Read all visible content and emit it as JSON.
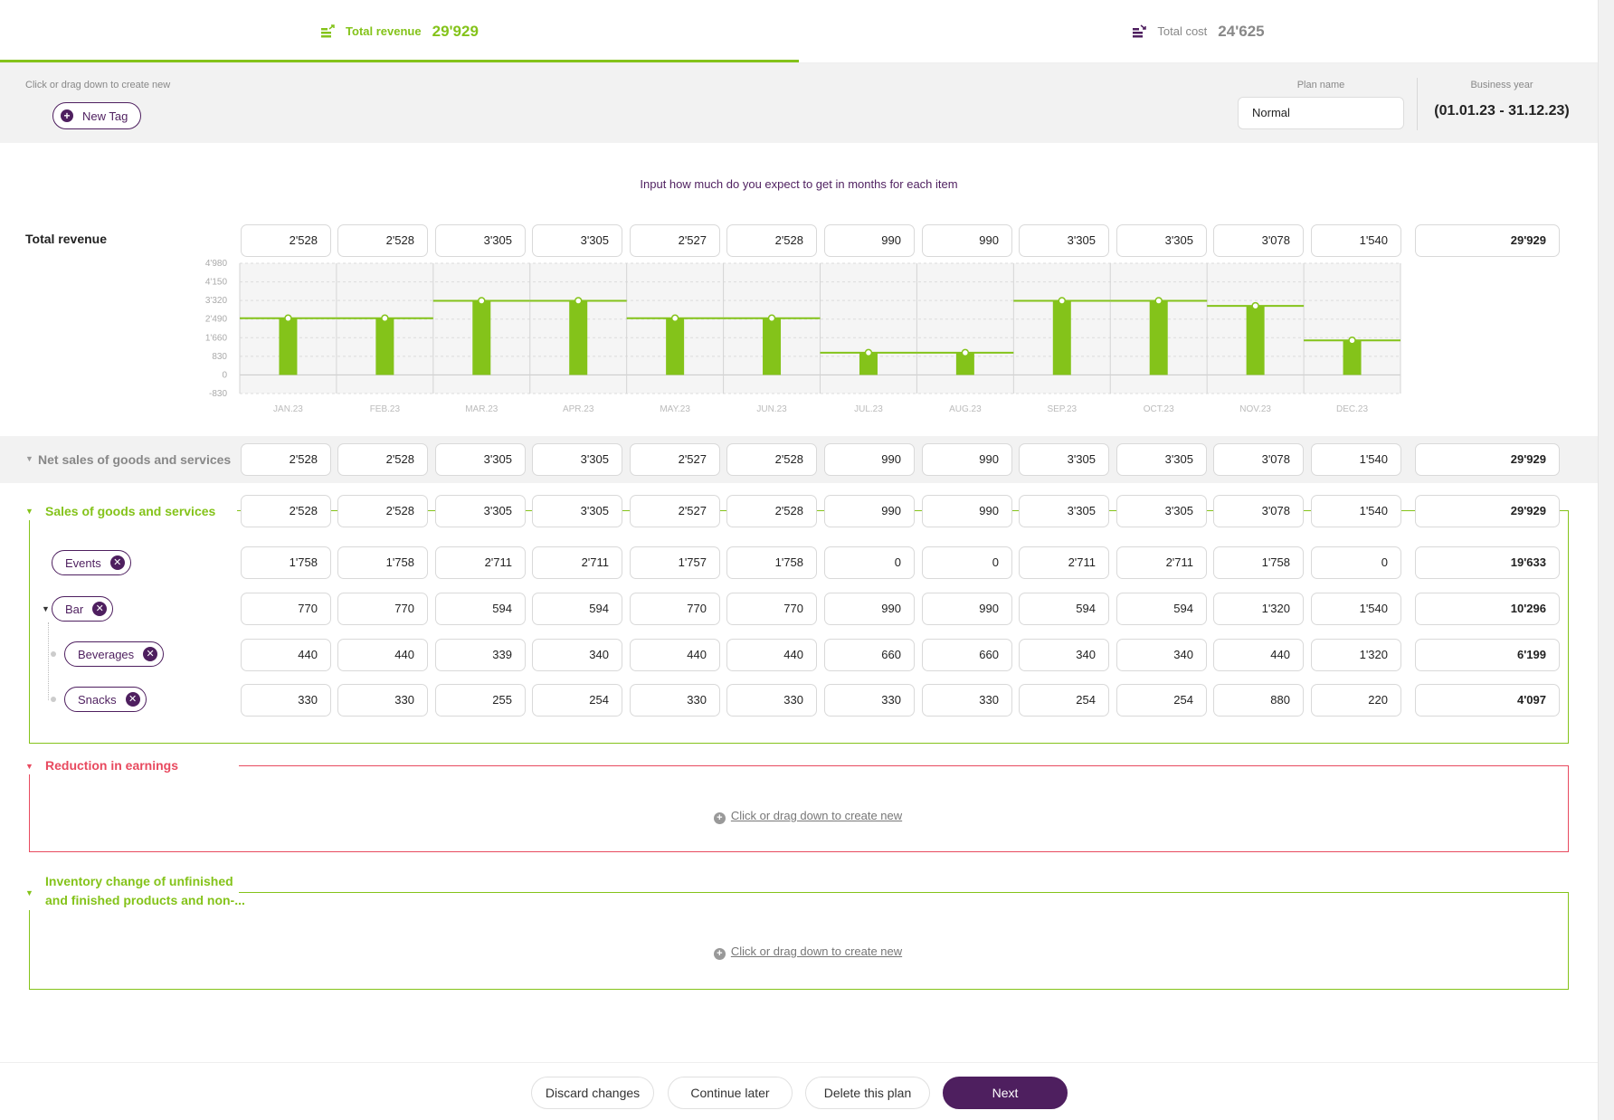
{
  "tabs": {
    "revenue": {
      "label": "Total revenue",
      "value": "29'929",
      "icon": "revenue-stack-icon"
    },
    "cost": {
      "label": "Total cost",
      "value": "24'625",
      "icon": "cost-stack-icon"
    }
  },
  "tagbar": {
    "hint": "Click or drag down to create new",
    "new_tag_label": "New Tag",
    "plan_name_label": "Plan name",
    "plan_name_value": "Normal",
    "business_year_label": "Business year",
    "business_year_value": "(01.01.23 - 31.12.23)"
  },
  "instruction": "Input how much do you expect to get in months for each item",
  "colors": {
    "accent_green": "#84c31a",
    "accent_red": "#e84a5f",
    "brand_purple": "#4e1f5f"
  },
  "rows": {
    "total_revenue": {
      "label": "Total revenue",
      "values": [
        "2'528",
        "2'528",
        "3'305",
        "3'305",
        "2'527",
        "2'528",
        "990",
        "990",
        "3'305",
        "3'305",
        "3'078",
        "1'540"
      ],
      "total": "29'929"
    },
    "net_sales": {
      "label": "Net sales of goods and services",
      "values": [
        "2'528",
        "2'528",
        "3'305",
        "3'305",
        "2'527",
        "2'528",
        "990",
        "990",
        "3'305",
        "3'305",
        "3'078",
        "1'540"
      ],
      "total": "29'929"
    },
    "sales_goods": {
      "label": "Sales of goods and services",
      "values": [
        "2'528",
        "2'528",
        "3'305",
        "3'305",
        "2'527",
        "2'528",
        "990",
        "990",
        "3'305",
        "3'305",
        "3'078",
        "1'540"
      ],
      "total": "29'929"
    },
    "events": {
      "label": "Events",
      "values": [
        "1'758",
        "1'758",
        "2'711",
        "2'711",
        "1'757",
        "1'758",
        "0",
        "0",
        "2'711",
        "2'711",
        "1'758",
        "0"
      ],
      "total": "19'633"
    },
    "bar": {
      "label": "Bar",
      "values": [
        "770",
        "770",
        "594",
        "594",
        "770",
        "770",
        "990",
        "990",
        "594",
        "594",
        "1'320",
        "1'540"
      ],
      "total": "10'296"
    },
    "beverages": {
      "label": "Beverages",
      "values": [
        "440",
        "440",
        "339",
        "340",
        "440",
        "440",
        "660",
        "660",
        "340",
        "340",
        "440",
        "1'320"
      ],
      "total": "6'199"
    },
    "snacks": {
      "label": "Snacks",
      "values": [
        "330",
        "330",
        "255",
        "254",
        "330",
        "330",
        "330",
        "330",
        "254",
        "254",
        "880",
        "220"
      ],
      "total": "4'097"
    }
  },
  "sections": {
    "reduction": {
      "title": "Reduction in earnings",
      "create_new": "Click or drag down to create new"
    },
    "inventory": {
      "title_line1": "Inventory change of unfinished",
      "title_line2": "and finished products and non-...",
      "create_new": "Click or drag down to create new"
    }
  },
  "chart_data": {
    "type": "bar",
    "categories": [
      "JAN.23",
      "FEB.23",
      "MAR.23",
      "APR.23",
      "MAY.23",
      "JUN.23",
      "JUL.23",
      "AUG.23",
      "SEP.23",
      "OCT.23",
      "NOV.23",
      "DEC.23"
    ],
    "values": [
      2528,
      2528,
      3305,
      3305,
      2527,
      2528,
      990,
      990,
      3305,
      3305,
      3078,
      1540
    ],
    "ylim": [
      -830,
      4980
    ],
    "yticks": [
      4980,
      4150,
      3320,
      2490,
      1660,
      830,
      0,
      -830
    ],
    "ytick_labels": [
      "4'980",
      "4'150",
      "3'320",
      "2'490",
      "1'660",
      "830",
      "0",
      "-830"
    ],
    "grid": true,
    "title": "",
    "xlabel": "",
    "ylabel": ""
  },
  "footer": {
    "discard": "Discard changes",
    "continue": "Continue later",
    "delete": "Delete this plan",
    "next": "Next"
  }
}
